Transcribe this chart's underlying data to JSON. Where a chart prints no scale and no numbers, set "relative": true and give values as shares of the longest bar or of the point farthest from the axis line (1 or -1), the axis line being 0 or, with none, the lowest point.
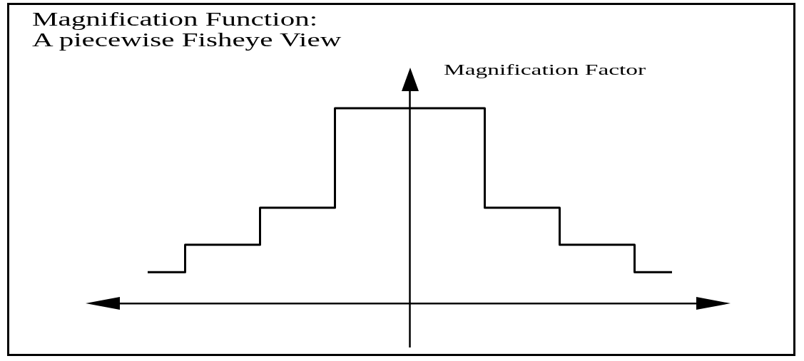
{
  "chart_data": {
    "type": "step",
    "title": "Magnification Function:",
    "subtitle": "A piecewise Fisheye View",
    "ylabel": "Magnification Factor",
    "relative": true,
    "categories": [
      null,
      null,
      null,
      null,
      null,
      null,
      null,
      null
    ],
    "series": [
      {
        "color": "#000000",
        "values": [
          0.16,
          0.3,
          0.49,
          1,
          1,
          0.49,
          0.3,
          0.16
        ]
      }
    ]
  }
}
